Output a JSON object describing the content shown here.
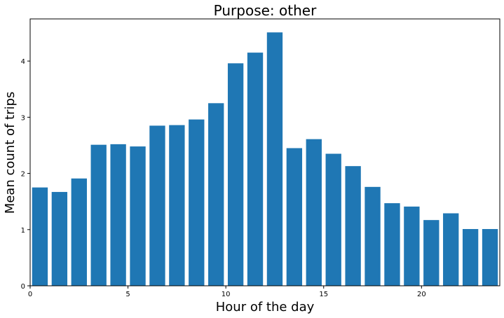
{
  "chart_data": {
    "type": "bar",
    "title": "Purpose: other",
    "xlabel": "Hour of the day",
    "ylabel": "Mean count of trips",
    "x": [
      0,
      1,
      2,
      3,
      4,
      5,
      6,
      7,
      8,
      9,
      10,
      11,
      12,
      13,
      14,
      15,
      16,
      17,
      18,
      19,
      20,
      21,
      22,
      23
    ],
    "values": [
      1.75,
      1.67,
      1.91,
      2.51,
      2.52,
      2.48,
      2.85,
      2.86,
      2.96,
      3.25,
      3.96,
      4.15,
      4.51,
      2.45,
      2.61,
      2.35,
      2.13,
      1.76,
      1.47,
      1.41,
      1.17,
      1.29,
      1.01,
      1.01
    ],
    "xlim": [
      0,
      24
    ],
    "ylim": [
      0,
      4.75
    ],
    "xticks": [
      0,
      5,
      10,
      15,
      20
    ],
    "yticks": [
      0,
      1,
      2,
      3,
      4
    ],
    "bar_color": "#1f77b4",
    "grid": false
  }
}
